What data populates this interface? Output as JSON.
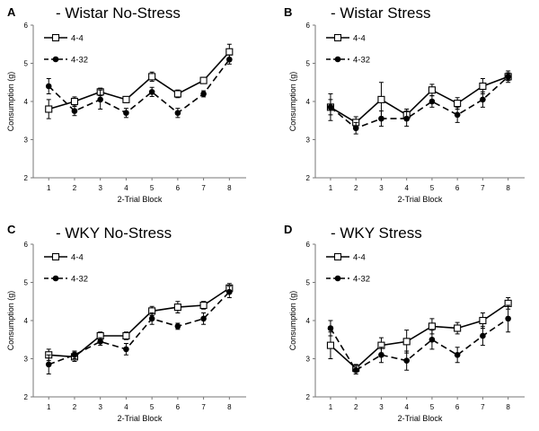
{
  "chart_data": [
    {
      "type": "line",
      "panel_letter": "A",
      "title": "- Wistar No-Stress",
      "xlabel": "2-Trial Block",
      "ylabel": "Consumption (g)",
      "categories": [
        "1",
        "2",
        "3",
        "4",
        "5",
        "6",
        "7",
        "8"
      ],
      "ylim": [
        2,
        6
      ],
      "yticks": [
        "2",
        "3",
        "4",
        "5",
        "6"
      ],
      "legend_position": "top-left",
      "series": [
        {
          "name": "4-4",
          "marker": "open-square",
          "line": "solid",
          "values": [
            3.8,
            4.0,
            4.25,
            4.05,
            4.65,
            4.2,
            4.55,
            5.3
          ],
          "errors": [
            0.25,
            0.12,
            0.1,
            0.08,
            0.12,
            0.1,
            0.08,
            0.2
          ]
        },
        {
          "name": "4-32",
          "marker": "filled-circle",
          "line": "dashed",
          "values": [
            4.4,
            3.75,
            4.05,
            3.7,
            4.25,
            3.7,
            4.2,
            5.1
          ],
          "errors": [
            0.2,
            0.12,
            0.25,
            0.12,
            0.12,
            0.12,
            0.08,
            0.12
          ]
        }
      ]
    },
    {
      "type": "line",
      "panel_letter": "B",
      "title": "- Wistar Stress",
      "xlabel": "2-Trial Block",
      "ylabel": "Consumption (g)",
      "categories": [
        "1",
        "2",
        "3",
        "4",
        "5",
        "6",
        "7",
        "8"
      ],
      "ylim": [
        2,
        6
      ],
      "yticks": [
        "2",
        "3",
        "4",
        "5",
        "6"
      ],
      "legend_position": "top-left",
      "series": [
        {
          "name": "4-4",
          "marker": "open-square",
          "line": "solid",
          "values": [
            3.85,
            3.45,
            4.05,
            3.65,
            4.3,
            3.95,
            4.4,
            4.65
          ],
          "errors": [
            0.35,
            0.15,
            0.45,
            0.15,
            0.15,
            0.15,
            0.2,
            0.15
          ]
        },
        {
          "name": "4-32",
          "marker": "filled-circle",
          "line": "dashed",
          "values": [
            3.85,
            3.3,
            3.55,
            3.55,
            4.0,
            3.65,
            4.05,
            4.65
          ],
          "errors": [
            0.2,
            0.15,
            0.2,
            0.2,
            0.15,
            0.2,
            0.2,
            0.1
          ]
        }
      ]
    },
    {
      "type": "line",
      "panel_letter": "C",
      "title": "- WKY No-Stress",
      "xlabel": "2-Trial Block",
      "ylabel": "Consumption (g)",
      "categories": [
        "1",
        "2",
        "3",
        "4",
        "5",
        "6",
        "7",
        "8"
      ],
      "ylim": [
        2,
        6
      ],
      "yticks": [
        "2",
        "3",
        "4",
        "5",
        "6"
      ],
      "legend_position": "top-left",
      "series": [
        {
          "name": "4-4",
          "marker": "open-square",
          "line": "solid",
          "values": [
            3.1,
            3.05,
            3.6,
            3.6,
            4.25,
            4.35,
            4.4,
            4.85
          ],
          "errors": [
            0.15,
            0.12,
            0.1,
            0.1,
            0.12,
            0.15,
            0.1,
            0.12
          ]
        },
        {
          "name": "4-32",
          "marker": "filled-circle",
          "line": "dashed",
          "values": [
            2.85,
            3.1,
            3.45,
            3.25,
            4.05,
            3.85,
            4.05,
            4.75
          ],
          "errors": [
            0.25,
            0.1,
            0.1,
            0.15,
            0.15,
            0.08,
            0.15,
            0.15
          ]
        }
      ]
    },
    {
      "type": "line",
      "panel_letter": "D",
      "title": "- WKY Stress",
      "xlabel": "2-Trial Block",
      "ylabel": "Consumption (g)",
      "categories": [
        "1",
        "2",
        "3",
        "4",
        "5",
        "6",
        "7",
        "8"
      ],
      "ylim": [
        2,
        6
      ],
      "yticks": [
        "2",
        "3",
        "4",
        "5",
        "6"
      ],
      "legend_position": "top-left",
      "series": [
        {
          "name": "4-4",
          "marker": "open-square",
          "line": "solid",
          "values": [
            3.35,
            2.75,
            3.35,
            3.45,
            3.85,
            3.8,
            4.0,
            4.45
          ],
          "errors": [
            0.35,
            0.1,
            0.2,
            0.3,
            0.2,
            0.15,
            0.2,
            0.15
          ]
        },
        {
          "name": "4-32",
          "marker": "filled-circle",
          "line": "dashed",
          "values": [
            3.8,
            2.7,
            3.1,
            2.95,
            3.5,
            3.1,
            3.6,
            4.05
          ],
          "errors": [
            0.2,
            0.1,
            0.2,
            0.25,
            0.25,
            0.2,
            0.25,
            0.35
          ]
        }
      ]
    }
  ]
}
